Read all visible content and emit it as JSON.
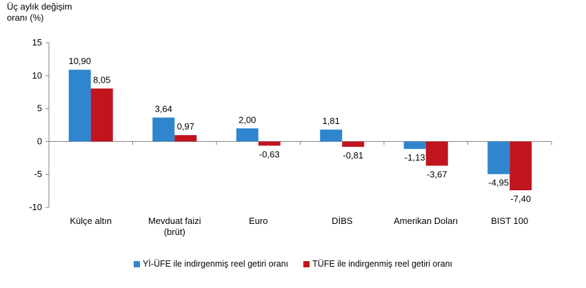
{
  "chart_data": {
    "type": "bar",
    "ylabel": [
      "Üç aylık değişim",
      "oranı (%)"
    ],
    "ylim": [
      -10,
      15
    ],
    "yticks": [
      15,
      10,
      5,
      0,
      -5,
      -10
    ],
    "categories": [
      [
        "Külçe altın"
      ],
      [
        "Mevduat faizi",
        "(brüt)"
      ],
      [
        "Euro"
      ],
      [
        "DİBS"
      ],
      [
        "Amerikan Doları"
      ],
      [
        "BIST 100"
      ]
    ],
    "series": [
      {
        "name": "Yİ-ÜFE ile indirgenmiş reel getiri oranı",
        "color": "#2F86CE",
        "values": [
          10.9,
          3.64,
          2.0,
          1.81,
          -1.13,
          -4.95
        ],
        "labels": [
          "10,90",
          "3,64",
          "2,00",
          "1,81",
          "-1,13",
          "-4,95"
        ]
      },
      {
        "name": "TÜFE ile indirgenmiş reel getiri oranı",
        "color": "#C0141E",
        "values": [
          8.05,
          0.97,
          -0.63,
          -0.81,
          -3.67,
          -7.4
        ],
        "labels": [
          "8,05",
          "0,97",
          "-0,63",
          "-0,81",
          "-3,67",
          "-7,40"
        ]
      }
    ],
    "legend_position": "bottom",
    "grid": false
  }
}
